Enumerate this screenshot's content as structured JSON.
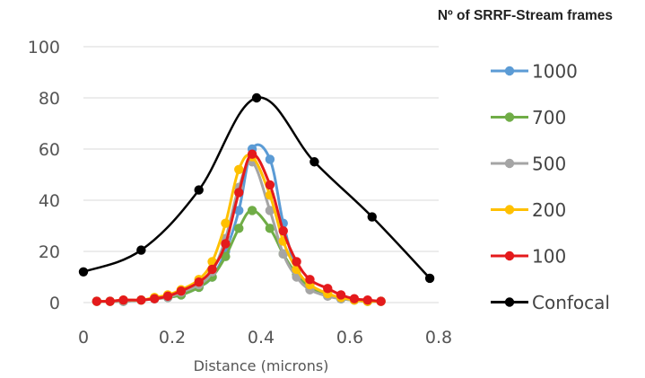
{
  "chart_data": {
    "type": "line",
    "legend_title": "Nº of SRRF-Stream frames",
    "xlabel": "Distance (microns)",
    "ylabel": "",
    "xlim": [
      0,
      0.8
    ],
    "ylim": [
      0,
      100
    ],
    "xticks": [
      0,
      0.2,
      0.4,
      0.6,
      0.8
    ],
    "xtick_labels": [
      "0",
      "0.2",
      "0.4",
      "0.6",
      "0.8"
    ],
    "yticks": [
      0,
      20,
      40,
      60,
      80,
      100
    ],
    "ytick_labels": [
      "0",
      "20",
      "40",
      "60",
      "80",
      "100"
    ],
    "grid": "horizontal",
    "legend_position": "right",
    "series": [
      {
        "name": "1000",
        "color": "#5b9bd5",
        "x": [
          0.03,
          0.06,
          0.09,
          0.13,
          0.16,
          0.19,
          0.22,
          0.26,
          0.29,
          0.32,
          0.35,
          0.38,
          0.42,
          0.45,
          0.48,
          0.51,
          0.55,
          0.58,
          0.61,
          0.64,
          0.67
        ],
        "y": [
          0.5,
          0.5,
          0.5,
          1,
          1.5,
          2,
          3,
          6,
          10,
          20,
          36,
          60,
          56,
          31,
          13,
          6,
          3,
          1.5,
          1,
          0.5,
          0.5
        ]
      },
      {
        "name": "700",
        "color": "#70ad47",
        "x": [
          0.03,
          0.06,
          0.09,
          0.13,
          0.16,
          0.19,
          0.22,
          0.26,
          0.29,
          0.32,
          0.35,
          0.38,
          0.42,
          0.45,
          0.48,
          0.51,
          0.55,
          0.58,
          0.61,
          0.64,
          0.67
        ],
        "y": [
          0.5,
          0.5,
          0.5,
          1,
          1.5,
          2,
          3,
          6,
          10,
          18,
          29,
          36,
          29,
          19,
          11,
          6,
          3,
          1.5,
          1,
          0.5,
          0.5
        ]
      },
      {
        "name": "500",
        "color": "#a5a5a5",
        "x": [
          0.03,
          0.06,
          0.09,
          0.13,
          0.16,
          0.19,
          0.22,
          0.26,
          0.29,
          0.32,
          0.35,
          0.38,
          0.42,
          0.45,
          0.48,
          0.51,
          0.55,
          0.58,
          0.61,
          0.64,
          0.67
        ],
        "y": [
          0.5,
          0.5,
          0.5,
          1,
          1.5,
          2,
          4,
          7,
          12,
          25,
          45,
          55,
          36,
          19,
          10,
          5,
          2.5,
          1.5,
          1,
          0.5,
          0.5
        ]
      },
      {
        "name": "200",
        "color": "#ffc000",
        "x": [
          0.03,
          0.06,
          0.09,
          0.13,
          0.16,
          0.19,
          0.22,
          0.26,
          0.29,
          0.32,
          0.35,
          0.38,
          0.42,
          0.45,
          0.48,
          0.51,
          0.55,
          0.58,
          0.61,
          0.64,
          0.67
        ],
        "y": [
          0.5,
          0.5,
          1,
          1,
          2,
          3,
          5,
          9,
          16,
          31,
          52,
          57,
          42,
          24,
          13,
          7,
          3.5,
          2,
          1,
          0.5,
          0.5
        ]
      },
      {
        "name": "100",
        "color": "#e41a1c",
        "x": [
          0.03,
          0.06,
          0.09,
          0.13,
          0.16,
          0.19,
          0.22,
          0.26,
          0.29,
          0.32,
          0.35,
          0.38,
          0.42,
          0.45,
          0.48,
          0.51,
          0.55,
          0.58,
          0.61,
          0.64,
          0.67
        ],
        "y": [
          0.5,
          0.5,
          1,
          1,
          1.5,
          2.5,
          4.5,
          8,
          13,
          23,
          43,
          58,
          46,
          28,
          16,
          9,
          5.5,
          3,
          1.5,
          1,
          0.5
        ]
      },
      {
        "name": "Confocal",
        "color": "#000000",
        "x": [
          0,
          0.13,
          0.26,
          0.39,
          0.52,
          0.65,
          0.78
        ],
        "y": [
          12,
          20.5,
          44,
          80,
          55,
          33.5,
          9.5
        ]
      }
    ]
  }
}
